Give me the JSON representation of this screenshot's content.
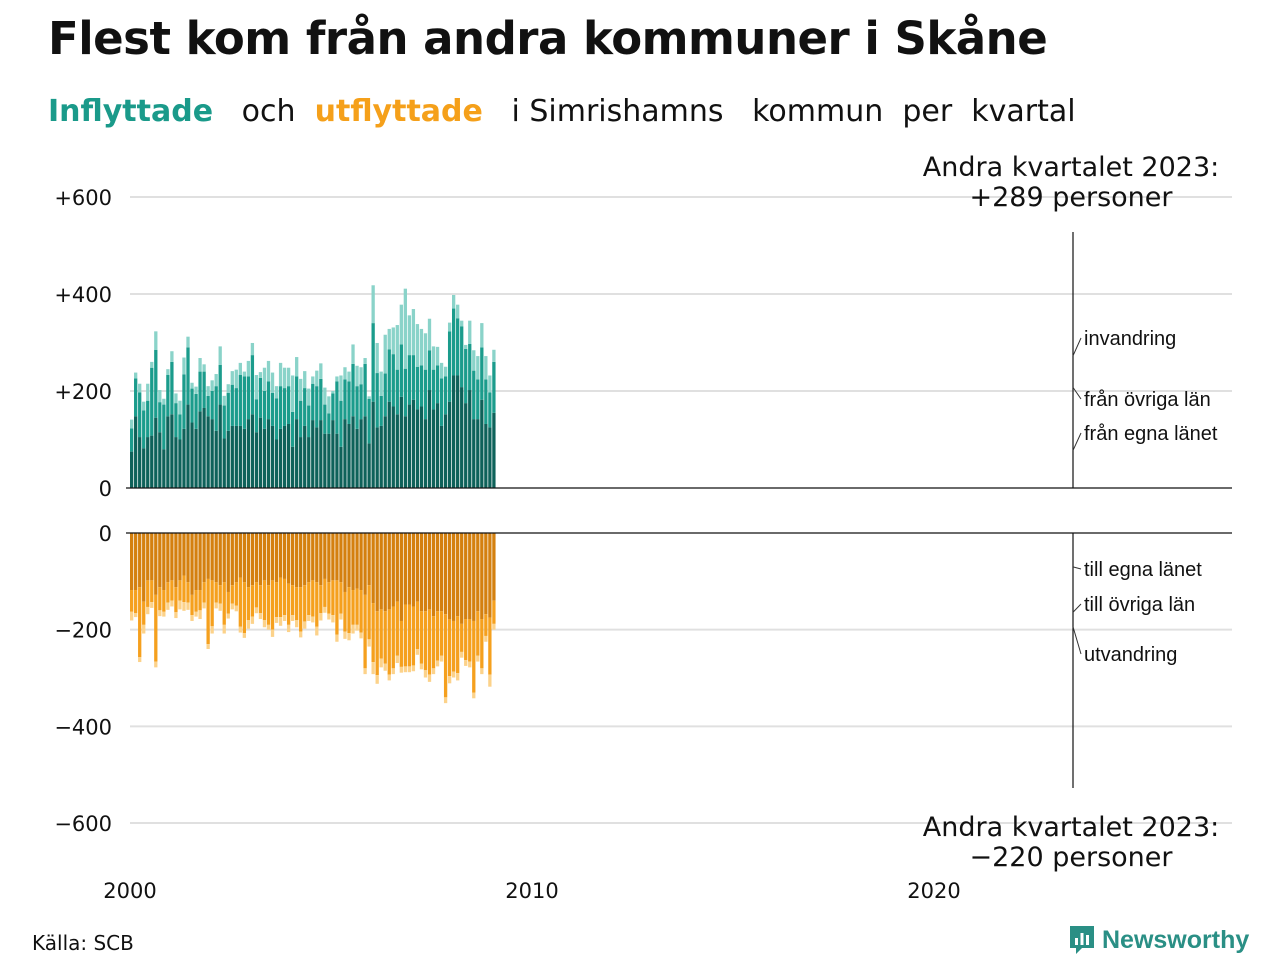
{
  "title": "Flest kom från andra kommuner i Skåne",
  "subtitle": {
    "in_word": "Inflyttade",
    "and_word": "och",
    "out_word": "utflyttade",
    "rest": "i Simrishamns   kommun  per  kvartal"
  },
  "annotations": {
    "top_line1": "Andra kvartalet 2023:",
    "top_line2": "+289 personer",
    "bottom_line1": "Andra kvartalet 2023:",
    "bottom_line2": "−220 personer"
  },
  "source": "Källa: SCB",
  "brand": {
    "name": "Newsworthy",
    "icon": "newsworthy-logo-icon",
    "color": "#2a8f85"
  },
  "colors": {
    "in_egna": "#0e625a",
    "in_ovriga": "#1b9c8c",
    "in_invandring": "#8ad3c9",
    "out_egna": "#d4800f",
    "out_ovriga": "#f5a01e",
    "out_utvandring": "#fcd28a",
    "grid": "#e0e0e0"
  },
  "chart_data": {
    "type": "bar",
    "stacked": true,
    "x_ticks": [
      "2000",
      "2010",
      "2020"
    ],
    "top": {
      "ylim": [
        0,
        600
      ],
      "yticks": [
        "0",
        "+200",
        "+400",
        "+600"
      ],
      "series": [
        {
          "name": "från egna länet",
          "values": [
            75,
            148,
            105,
            82,
            105,
            108,
            145,
            115,
            80,
            148,
            152,
            105,
            100,
            122,
            172,
            135,
            122,
            158,
            165,
            148,
            142,
            118,
            172,
            102,
            118,
            128,
            128,
            128,
            122,
            142,
            152,
            115,
            145,
            122,
            142,
            128,
            100,
            122,
            128,
            132,
            85,
            142,
            105,
            128,
            105,
            140,
            125,
            140,
            112,
            112,
            140,
            112,
            85,
            142,
            132,
            148,
            122,
            142,
            148,
            92,
            178,
            125,
            128,
            148,
            178,
            168,
            152,
            188,
            148,
            172,
            182,
            162,
            168,
            142,
            202,
            162,
            175,
            128,
            152,
            178,
            232,
            232,
            208,
            175,
            202,
            142,
            142,
            182,
            132,
            125,
            155
          ]
        },
        {
          "name": "från övriga län",
          "values": [
            48,
            78,
            92,
            78,
            75,
            140,
            140,
            62,
            92,
            85,
            108,
            70,
            52,
            112,
            118,
            70,
            72,
            82,
            75,
            42,
            58,
            92,
            82,
            68,
            78,
            85,
            78,
            105,
            108,
            88,
            122,
            68,
            82,
            78,
            78,
            68,
            85,
            88,
            78,
            78,
            72,
            88,
            75,
            78,
            65,
            75,
            85,
            85,
            60,
            42,
            55,
            108,
            95,
            82,
            88,
            108,
            88,
            72,
            108,
            92,
            162,
            112,
            62,
            88,
            108,
            108,
            92,
            108,
            98,
            102,
            92,
            88,
            85,
            102,
            82,
            82,
            78,
            98,
            78,
            145,
            138,
            118,
            125,
            112,
            95,
            100,
            82,
            108,
            92,
            72,
            105
          ]
        },
        {
          "name": "invandring",
          "values": [
            18,
            12,
            18,
            18,
            35,
            12,
            38,
            25,
            12,
            12,
            22,
            20,
            28,
            35,
            22,
            12,
            15,
            28,
            15,
            20,
            22,
            25,
            38,
            20,
            18,
            28,
            38,
            25,
            10,
            32,
            25,
            50,
            12,
            48,
            42,
            42,
            25,
            48,
            42,
            38,
            75,
            40,
            45,
            35,
            35,
            15,
            32,
            32,
            35,
            35,
            5,
            10,
            52,
            25,
            20,
            40,
            42,
            35,
            12,
            5,
            78,
            62,
            50,
            80,
            42,
            55,
            92,
            82,
            165,
            82,
            95,
            88,
            75,
            75,
            65,
            48,
            38,
            32,
            20,
            18,
            28,
            28,
            12,
            8,
            48,
            42,
            48,
            50,
            48,
            35,
            25
          ]
        }
      ]
    },
    "bottom": {
      "ylim": [
        -600,
        0
      ],
      "yticks": [
        "0",
        "−200",
        "−400",
        "−600"
      ],
      "series": [
        {
          "name": "till egna länet",
          "values": [
            -118,
            -118,
            -112,
            -142,
            -98,
            -98,
            -128,
            -112,
            -118,
            -102,
            -98,
            -112,
            -98,
            -88,
            -102,
            -128,
            -118,
            -118,
            -102,
            -95,
            -98,
            -102,
            -108,
            -102,
            -122,
            -108,
            -102,
            -92,
            -102,
            -112,
            -108,
            -102,
            -108,
            -98,
            -108,
            -98,
            -102,
            -92,
            -95,
            -105,
            -108,
            -112,
            -112,
            -108,
            -102,
            -98,
            -102,
            -108,
            -95,
            -102,
            -98,
            -98,
            -102,
            -122,
            -112,
            -118,
            -115,
            -118,
            -128,
            -108,
            -145,
            -162,
            -158,
            -162,
            -158,
            -152,
            -142,
            -182,
            -148,
            -148,
            -152,
            -142,
            -162,
            -162,
            -158,
            -172,
            -162,
            -162,
            -168,
            -178,
            -182,
            -172,
            -188,
            -178,
            -178,
            -182,
            -162,
            -178,
            -168,
            -175,
            -140
          ]
        },
        {
          "name": "till övriga län",
          "values": [
            -45,
            -48,
            -145,
            -48,
            -55,
            -45,
            -138,
            -48,
            -45,
            -42,
            -42,
            -52,
            -42,
            -55,
            -42,
            -42,
            -45,
            -42,
            -42,
            -135,
            -95,
            -42,
            -38,
            -88,
            -45,
            -38,
            -48,
            -102,
            -105,
            -68,
            -65,
            -52,
            -58,
            -82,
            -82,
            -102,
            -72,
            -82,
            -75,
            -85,
            -62,
            -68,
            -92,
            -75,
            -68,
            -75,
            -92,
            -58,
            -58,
            -65,
            -72,
            -112,
            -65,
            -82,
            -95,
            -72,
            -75,
            -88,
            -152,
            -112,
            -122,
            -132,
            -102,
            -108,
            -135,
            -128,
            -112,
            -95,
            -128,
            -128,
            -122,
            -98,
            -108,
            -122,
            -135,
            -108,
            -102,
            -92,
            -172,
            -118,
            -105,
            -118,
            -58,
            -85,
            -88,
            -148,
            -92,
            -102,
            -45,
            -118,
            -48
          ]
        },
        {
          "name": "utvandring",
          "values": [
            -18,
            -8,
            -10,
            -18,
            -15,
            -12,
            -12,
            -12,
            -10,
            -15,
            -12,
            -12,
            -18,
            -18,
            -15,
            -12,
            -10,
            -18,
            -12,
            -10,
            -15,
            -12,
            -15,
            -18,
            -10,
            -12,
            -12,
            -12,
            -10,
            -18,
            -15,
            -12,
            -12,
            -15,
            -10,
            -15,
            -12,
            -18,
            -12,
            -15,
            -12,
            -15,
            -12,
            -15,
            -12,
            -12,
            -18,
            -15,
            -12,
            -12,
            -15,
            -15,
            -12,
            -15,
            -15,
            -18,
            -12,
            -12,
            -12,
            -15,
            -25,
            -18,
            -18,
            -15,
            -12,
            -12,
            -15,
            -12,
            -12,
            -12,
            -12,
            -12,
            -12,
            -15,
            -15,
            -12,
            -12,
            -12,
            -12,
            -15,
            -12,
            -15,
            -12,
            -12,
            -12,
            -12,
            -12,
            -12,
            -12,
            -25,
            -12
          ]
        }
      ]
    },
    "line_labels_top": [
      "invandring",
      "från övriga län",
      "från egna länet"
    ],
    "line_labels_bottom": [
      "till egna länet",
      "till övriga län",
      "utvandring"
    ]
  }
}
